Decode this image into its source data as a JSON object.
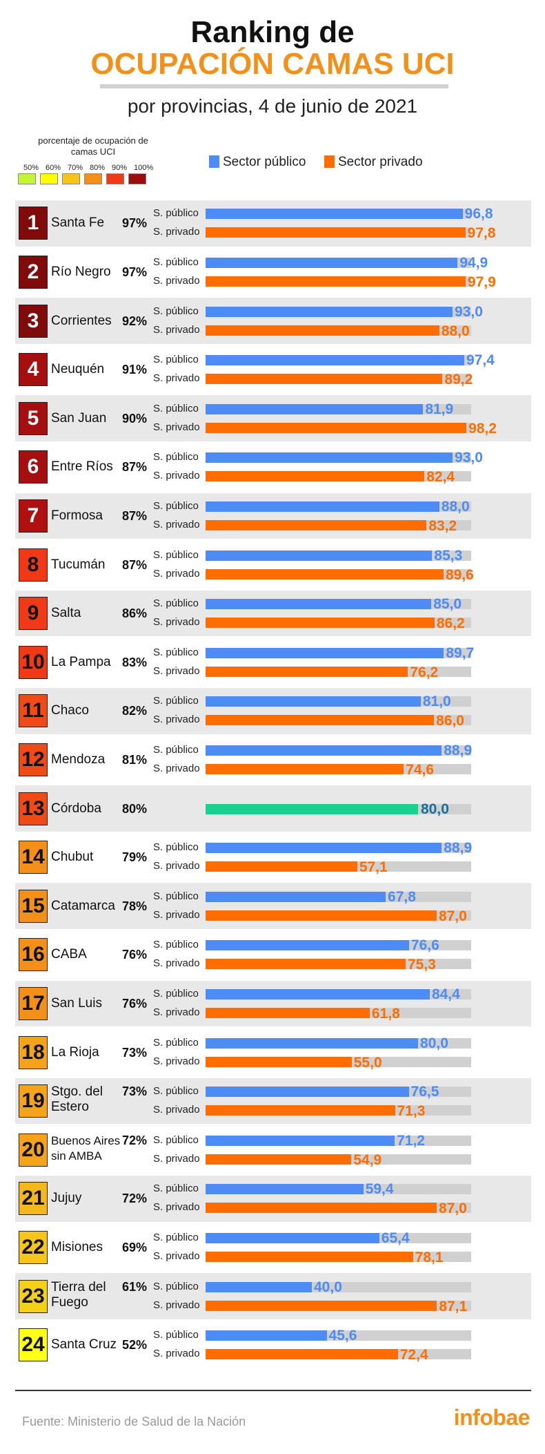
{
  "header": {
    "title_line1": "Ranking de",
    "title_line2": "OCUPACIÓN CAMAS UCI",
    "subtitle": "por provincias, 4 de junio  de 2021"
  },
  "color_scale": {
    "title": "porcentaje de ocupación de camas UCI",
    "labels": [
      "50%",
      "60%",
      "70%",
      "80%",
      "90%",
      "100%"
    ],
    "colors": [
      "#c4f532",
      "#ffff00",
      "#f5c518",
      "#f39019",
      "#f03a17",
      "#9b0d0d"
    ]
  },
  "legend": {
    "public": "Sector público",
    "private": "Sector privado"
  },
  "labels": {
    "public": "S. público",
    "private": "S. privado"
  },
  "colors": {
    "public": "#4d8cf5",
    "private": "#ff6d00",
    "combined": "#19d18f",
    "combined_value": "#1a6f9a",
    "track": "#d0d0d0",
    "row_shade": "#e8e8e8"
  },
  "chart_data": {
    "type": "bar",
    "xlim": [
      0,
      100
    ],
    "rows": [
      {
        "rank": "1",
        "name": "Santa Fe",
        "total": "97%",
        "public": 96.8,
        "public_label": "96,8",
        "private": 97.8,
        "private_label": "97,8",
        "badge": "#7f0b0b",
        "badge_text": "#ffffff"
      },
      {
        "rank": "2",
        "name": "Río Negro",
        "total": "97%",
        "public": 94.9,
        "public_label": "94,9",
        "private": 97.9,
        "private_label": "97,9",
        "badge": "#7f0b0b",
        "badge_text": "#ffffff"
      },
      {
        "rank": "3",
        "name": "Corrientes",
        "total": "92%",
        "public": 93.0,
        "public_label": "93,0",
        "private": 88.0,
        "private_label": "88,0",
        "badge": "#7f0b0b",
        "badge_text": "#ffffff"
      },
      {
        "rank": "4",
        "name": "Neuquén",
        "total": "91%",
        "public": 97.4,
        "public_label": "97,4",
        "private": 89.2,
        "private_label": "89,2",
        "badge": "#a50f0f",
        "badge_text": "#ffffff"
      },
      {
        "rank": "5",
        "name": "San Juan",
        "total": "90%",
        "public": 81.9,
        "public_label": "81,9",
        "private": 98.2,
        "private_label": "98,2",
        "badge": "#a50f0f",
        "badge_text": "#ffffff"
      },
      {
        "rank": "6",
        "name": "Entre Ríos",
        "total": "87%",
        "public": 93.0,
        "public_label": "93,0",
        "private": 82.4,
        "private_label": "82,4",
        "badge": "#a50f0f",
        "badge_text": "#ffffff"
      },
      {
        "rank": "7",
        "name": "Formosa",
        "total": "87%",
        "public": 88.0,
        "public_label": "88,0",
        "private": 83.2,
        "private_label": "83,2",
        "badge": "#b01010",
        "badge_text": "#ffffff"
      },
      {
        "rank": "8",
        "name": "Tucumán",
        "total": "87%",
        "public": 85.3,
        "public_label": "85,3",
        "private": 89.6,
        "private_label": "89,6",
        "badge": "#f03a17",
        "badge_text": "#111111"
      },
      {
        "rank": "9",
        "name": "Salta",
        "total": "86%",
        "public": 85.0,
        "public_label": "85,0",
        "private": 86.2,
        "private_label": "86,2",
        "badge": "#f03a17",
        "badge_text": "#111111"
      },
      {
        "rank": "10",
        "name": "La Pampa",
        "total": "83%",
        "public": 89.7,
        "public_label": "89,7",
        "private": 76.2,
        "private_label": "76,2",
        "badge": "#f03a17",
        "badge_text": "#111111"
      },
      {
        "rank": "11",
        "name": "Chaco",
        "total": "82%",
        "public": 81.0,
        "public_label": "81,0",
        "private": 86.0,
        "private_label": "86,0",
        "badge": "#f04a17",
        "badge_text": "#111111"
      },
      {
        "rank": "12",
        "name": "Mendoza",
        "total": "81%",
        "public": 88.9,
        "public_label": "88,9",
        "private": 74.6,
        "private_label": "74,6",
        "badge": "#f04a17",
        "badge_text": "#111111"
      },
      {
        "rank": "13",
        "name": "Córdoba",
        "total": "80%",
        "combined": 80.0,
        "combined_label": "80,0",
        "badge": "#f04a17",
        "badge_text": "#111111"
      },
      {
        "rank": "14",
        "name": "Chubut",
        "total": "79%",
        "public": 88.9,
        "public_label": "88,9",
        "private": 57.1,
        "private_label": "57,1",
        "badge": "#f39019",
        "badge_text": "#111111"
      },
      {
        "rank": "15",
        "name": "Catamarca",
        "total": "78%",
        "public": 67.8,
        "public_label": "67,8",
        "private": 87.0,
        "private_label": "87,0",
        "badge": "#f39019",
        "badge_text": "#111111"
      },
      {
        "rank": "16",
        "name": "CABA",
        "total": "76%",
        "public": 76.6,
        "public_label": "76,6",
        "private": 75.3,
        "private_label": "75,3",
        "badge": "#f39019",
        "badge_text": "#111111"
      },
      {
        "rank": "17",
        "name": "San Luis",
        "total": "76%",
        "public": 84.4,
        "public_label": "84,4",
        "private": 61.8,
        "private_label": "61,8",
        "badge": "#f39019",
        "badge_text": "#111111"
      },
      {
        "rank": "18",
        "name": "La Rioja",
        "total": "73%",
        "public": 80.0,
        "public_label": "80,0",
        "private": 55.0,
        "private_label": "55,0",
        "badge": "#f5a31b",
        "badge_text": "#111111"
      },
      {
        "rank": "19",
        "name": "Stgo. del Estero",
        "total": "73%",
        "public": 76.5,
        "public_label": "76,5",
        "private": 71.3,
        "private_label": "71,3",
        "badge": "#f5a31b",
        "badge_text": "#111111"
      },
      {
        "rank": "20",
        "name": "Buenos Aires sin AMBA",
        "total": "72%",
        "public": 71.2,
        "public_label": "71,2",
        "private": 54.9,
        "private_label": "54,9",
        "badge": "#f5a31b",
        "badge_text": "#111111"
      },
      {
        "rank": "21",
        "name": "Jujuy",
        "total": "72%",
        "public": 59.4,
        "public_label": "59,4",
        "private": 87.0,
        "private_label": "87,0",
        "badge": "#f5b81b",
        "badge_text": "#111111"
      },
      {
        "rank": "22",
        "name": "Misiones",
        "total": "69%",
        "public": 65.4,
        "public_label": "65,4",
        "private": 78.1,
        "private_label": "78,1",
        "badge": "#f5c518",
        "badge_text": "#111111"
      },
      {
        "rank": "23",
        "name": "Tierra del Fuego",
        "total": "61%",
        "public": 40.0,
        "public_label": "40,0",
        "private": 87.1,
        "private_label": "87,1",
        "badge": "#f5d018",
        "badge_text": "#111111"
      },
      {
        "rank": "24",
        "name": "Santa Cruz",
        "total": "52%",
        "public": 45.6,
        "public_label": "45,6",
        "private": 72.4,
        "private_label": "72,4",
        "badge": "#ffff1a",
        "badge_text": "#111111"
      }
    ]
  },
  "footer": {
    "source": "Fuente: Ministerio de Salud de la Nación",
    "brand": "infobae"
  }
}
